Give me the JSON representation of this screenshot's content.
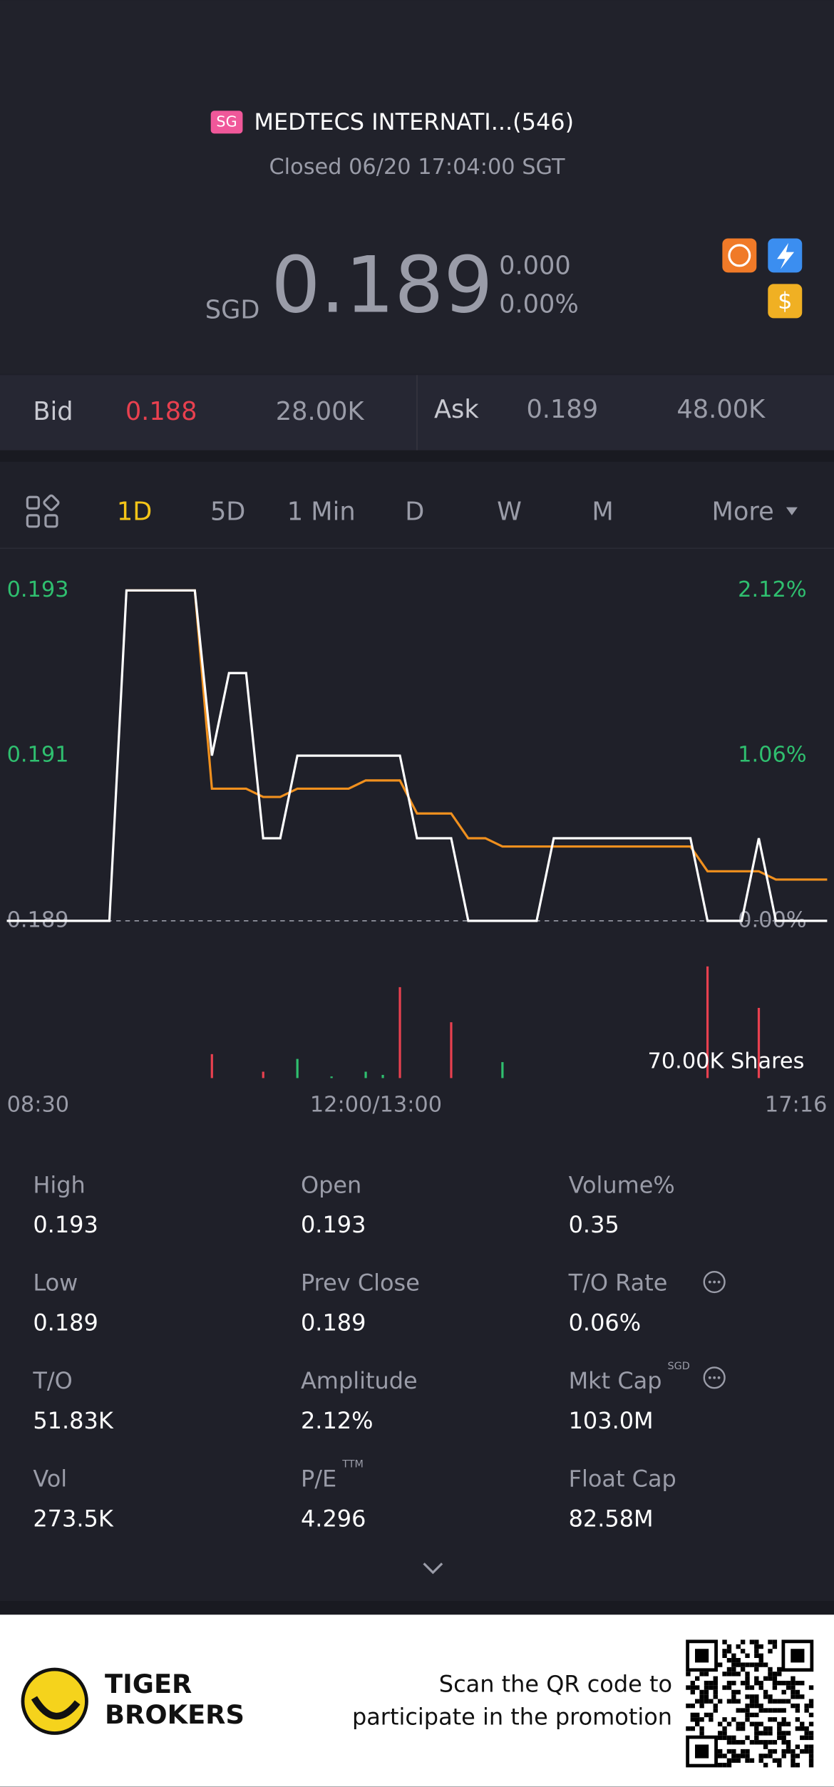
{
  "header": {
    "badge": "SG",
    "name": "MEDTECS INTERNATI...(546)",
    "status": "Closed 06/20 17:04:00 SGT"
  },
  "quote": {
    "currency": "SGD",
    "price": "0.189",
    "change": "0.000",
    "change_pct": "0.00%"
  },
  "book": {
    "bid_label": "Bid",
    "bid": "0.188",
    "bid_size": "28.00K",
    "ask_label": "Ask",
    "ask": "0.189",
    "ask_size": "48.00K"
  },
  "tabs": [
    "1D",
    "5D",
    "1 Min",
    "D",
    "W",
    "M",
    "More"
  ],
  "chart_data": {
    "type": "line",
    "ylim": [
      0.189,
      0.193
    ],
    "yticks": [
      0.189,
      0.191,
      0.193
    ],
    "y2lim": [
      0,
      2.12
    ],
    "y2ticks": [
      {
        "value": 0,
        "label": "0.00%"
      },
      {
        "value": 1.06,
        "label": "1.06%"
      },
      {
        "value": 2.12,
        "label": "2.12%"
      }
    ],
    "x_labels": [
      "08:30",
      "12:00/13:00",
      "17:16"
    ],
    "series": [
      {
        "color": "#ffffff",
        "values": [
          0.189,
          0.189,
          0.189,
          0.189,
          0.189,
          0.189,
          0.189,
          0.193,
          0.193,
          0.193,
          0.193,
          0.193,
          0.191,
          0.192,
          0.192,
          0.19,
          0.19,
          0.191,
          0.191,
          0.191,
          0.191,
          0.191,
          0.191,
          0.191,
          0.19,
          0.19,
          0.19,
          0.189,
          0.189,
          0.189,
          0.189,
          0.189,
          0.19,
          0.19,
          0.19,
          0.19,
          0.19,
          0.19,
          0.19,
          0.19,
          0.19,
          0.189,
          0.189,
          0.189,
          0.19,
          0.189,
          0.189,
          0.189,
          0.189
        ]
      },
      {
        "color": "#f0901e",
        "values": [
          null,
          null,
          null,
          null,
          null,
          null,
          null,
          0.193,
          0.193,
          0.193,
          0.193,
          0.193,
          0.1906,
          0.1906,
          0.1906,
          0.1905,
          0.1905,
          0.1906,
          0.1906,
          0.1906,
          0.1906,
          0.1907,
          0.1907,
          0.1907,
          0.1903,
          0.1903,
          0.1903,
          0.19,
          0.19,
          0.1899,
          0.1899,
          0.1899,
          0.1899,
          0.1899,
          0.1899,
          0.1899,
          0.1899,
          0.1899,
          0.1899,
          0.1899,
          0.1899,
          0.1896,
          0.1896,
          0.1896,
          0.1896,
          0.1895,
          0.1895,
          0.1895,
          0.1895
        ]
      }
    ],
    "volume_axis_label": "70.00K Shares",
    "volume_lim": [
      0,
      70000
    ],
    "volume": [
      {
        "color": "#e8404f",
        "values": [
          0,
          0,
          0,
          0,
          0,
          0,
          0,
          0,
          0,
          0,
          0,
          0,
          15000,
          0,
          0,
          4000,
          0,
          0,
          0,
          0,
          0,
          0,
          0,
          57000,
          0,
          0,
          35000,
          0,
          0,
          0,
          0,
          0,
          0,
          0,
          0,
          0,
          0,
          0,
          0,
          0,
          0,
          70000,
          0,
          0,
          44000,
          0,
          0,
          0,
          0
        ]
      },
      {
        "color": "#2fbf6f",
        "values": [
          0,
          0,
          0,
          0,
          0,
          0,
          0,
          0,
          0,
          0,
          0,
          0,
          0,
          0,
          0,
          0,
          0,
          12000,
          0,
          1000,
          0,
          4000,
          2000,
          0,
          0,
          0,
          0,
          0,
          0,
          10000,
          0,
          0,
          0,
          0,
          0,
          0,
          0,
          0,
          0,
          0,
          0,
          0,
          0,
          0,
          0,
          0,
          0,
          0,
          0
        ]
      }
    ]
  },
  "stats": [
    {
      "label": "High",
      "value": "0.193"
    },
    {
      "label": "Open",
      "value": "0.193"
    },
    {
      "label": "Volume%",
      "value": "0.35"
    },
    {
      "label": "Low",
      "value": "0.189"
    },
    {
      "label": "Prev Close",
      "value": "0.189"
    },
    {
      "label": "T/O Rate",
      "value": "0.06%"
    },
    {
      "label": "T/O",
      "value": "51.83K"
    },
    {
      "label": "Amplitude",
      "value": "2.12%"
    },
    {
      "label": "Mkt Cap",
      "sup": "SGD",
      "value": "103.0M"
    },
    {
      "label": "Vol",
      "value": "273.5K"
    },
    {
      "label": "P/E",
      "sup": "TTM",
      "value": "4.296"
    },
    {
      "label": "Float Cap",
      "value": "82.58M"
    }
  ],
  "footer": {
    "brand": [
      "TIGER",
      "BROKERS"
    ],
    "promo": [
      "Scan the QR code to",
      "participate in the promotion"
    ]
  }
}
